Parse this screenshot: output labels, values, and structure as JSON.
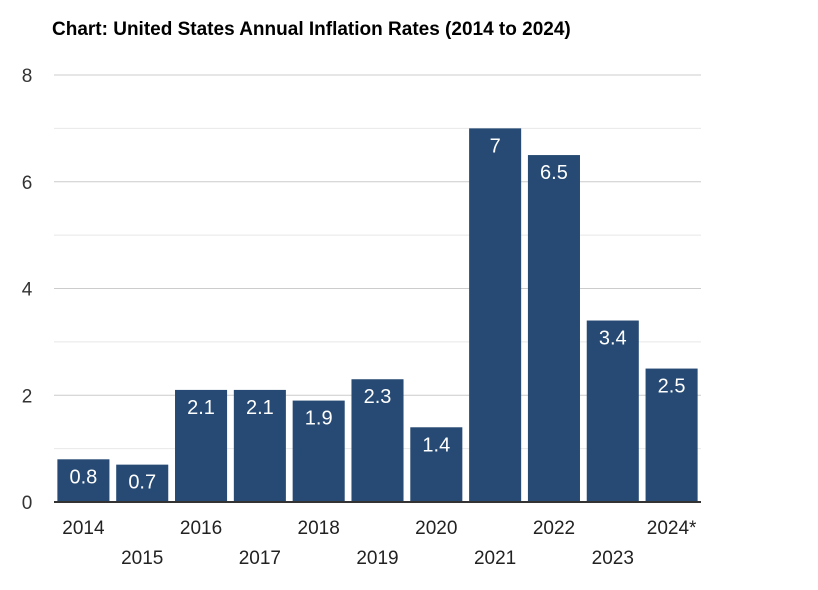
{
  "chart_data": {
    "type": "bar",
    "title": "Chart: United States Annual Inflation Rates (2014 to 2024)",
    "xlabel": "",
    "ylabel": "",
    "categories": [
      "2014",
      "2015",
      "2016",
      "2017",
      "2018",
      "2019",
      "2020",
      "2021",
      "2022",
      "2023",
      "2024*"
    ],
    "values": [
      0.8,
      0.7,
      2.1,
      2.1,
      1.9,
      2.3,
      1.4,
      7,
      6.5,
      3.4,
      2.5
    ],
    "data_labels": [
      "0.8",
      "0.7",
      "2.1",
      "2.1",
      "1.9",
      "2.3",
      "1.4",
      "7",
      "6.5",
      "3.4",
      "2.5"
    ],
    "ylim": [
      0,
      8
    ],
    "yticks": [
      0,
      2,
      4,
      6,
      8
    ],
    "minor_gridlines": [
      1,
      3,
      5,
      7
    ],
    "grid": true,
    "legend": "none",
    "bar_color": "#264a73",
    "gridline_color": "#cccccc",
    "minor_gridline_color": "#e8e8e8",
    "baseline_color": "#333333"
  }
}
